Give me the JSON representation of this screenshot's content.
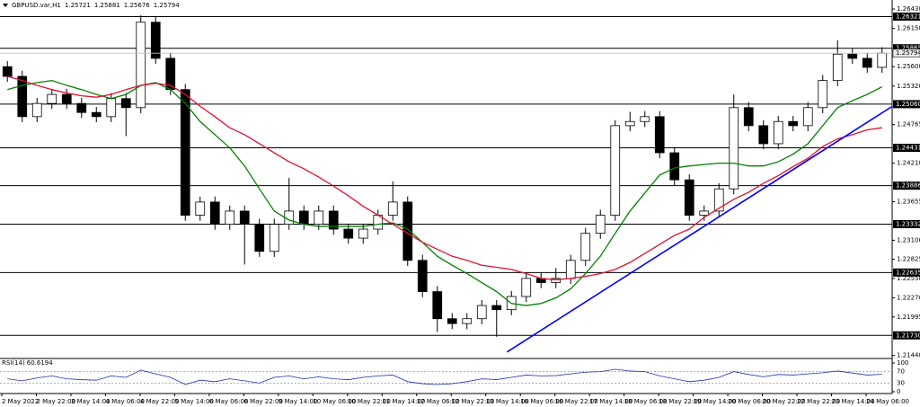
{
  "chart_data": {
    "type": "candlestick",
    "symbol": "GBPUSD.var,H1",
    "quote": [
      1.25721,
      1.25881,
      1.25676,
      1.25794
    ],
    "up_color": "#ffffff",
    "down_color": "#000000",
    "ylim": [
      1.2141,
      1.2656
    ],
    "yticks": [
      {
        "value": 1.2643,
        "label": "1.26430"
      },
      {
        "value": 1.2615,
        "label": "1.26150"
      },
      {
        "value": 1.256,
        "label": "1.25600"
      },
      {
        "value": 1.2532,
        "label": "1.25320"
      },
      1.24765,
      {
        "value": 1.2421,
        "label": "1.24210"
      },
      1.23655,
      {
        "value": 1.231,
        "label": "1.23100"
      },
      1.22825,
      {
        "value": 1.2255,
        "label": "1.22550"
      },
      {
        "value": 1.2227,
        "label": "1.22270"
      },
      1.21995,
      {
        "value": 1.2144,
        "label": "1.21440"
      }
    ],
    "candles": [
      [
        1.256,
        1.2568,
        1.2538,
        1.2546
      ],
      [
        1.2546,
        1.2554,
        1.248,
        1.2488
      ],
      [
        1.2488,
        1.2515,
        1.248,
        1.2507
      ],
      [
        1.2507,
        1.2528,
        1.2499,
        1.252
      ],
      [
        1.252,
        1.2528,
        1.2499,
        1.2507
      ],
      [
        1.2507,
        1.2515,
        1.2486,
        1.2494
      ],
      [
        1.2494,
        1.2502,
        1.248,
        1.2488
      ],
      [
        1.2488,
        1.2522,
        1.248,
        1.2514
      ],
      [
        1.2514,
        1.2522,
        1.246,
        1.2501
      ],
      [
        1.2501,
        1.2634,
        1.2493,
        1.2624
      ],
      [
        1.2624,
        1.2632,
        1.2564,
        1.2572
      ],
      [
        1.2572,
        1.258,
        1.2519,
        1.2527
      ],
      [
        1.2527,
        1.2535,
        1.2338,
        1.2346
      ],
      [
        1.2346,
        1.2373,
        1.2338,
        1.2365
      ],
      [
        1.2365,
        1.2373,
        1.2325,
        1.2333
      ],
      [
        1.2333,
        1.236,
        1.2325,
        1.2352
      ],
      [
        1.2352,
        1.236,
        1.2275,
        1.2333
      ],
      [
        1.2333,
        1.2341,
        1.2286,
        1.2294
      ],
      [
        1.2294,
        1.2341,
        1.2286,
        1.2333
      ],
      [
        1.2333,
        1.24,
        1.2325,
        1.2352
      ],
      [
        1.2352,
        1.236,
        1.2325,
        1.2333
      ],
      [
        1.2333,
        1.236,
        1.2325,
        1.2352
      ],
      [
        1.2352,
        1.236,
        1.2318,
        1.2326
      ],
      [
        1.2326,
        1.2334,
        1.2305,
        1.2313
      ],
      [
        1.2313,
        1.2334,
        1.2305,
        1.2326
      ],
      [
        1.2326,
        1.2354,
        1.2318,
        1.2346
      ],
      [
        1.2346,
        1.2395,
        1.2338,
        1.2365
      ],
      [
        1.2365,
        1.2373,
        1.2273,
        1.2281
      ],
      [
        1.2281,
        1.2289,
        1.2228,
        1.2236
      ],
      [
        1.2236,
        1.2244,
        1.2178,
        1.2197
      ],
      [
        1.2197,
        1.2205,
        1.2182,
        1.219
      ],
      [
        1.219,
        1.2205,
        1.2182,
        1.2197
      ],
      [
        1.2197,
        1.2224,
        1.2189,
        1.2216
      ],
      [
        1.2216,
        1.2224,
        1.2171,
        1.221
      ],
      [
        1.221,
        1.2237,
        1.2202,
        1.2229
      ],
      [
        1.2229,
        1.2263,
        1.2221,
        1.2255
      ],
      [
        1.2255,
        1.2263,
        1.2241,
        1.2249
      ],
      [
        1.2249,
        1.227,
        1.2241,
        1.2255
      ],
      [
        1.2255,
        1.2289,
        1.2247,
        1.2281
      ],
      [
        1.2281,
        1.2328,
        1.2273,
        1.232
      ],
      [
        1.232,
        1.2354,
        1.2312,
        1.2346
      ],
      [
        1.2346,
        1.2483,
        1.2338,
        1.2475
      ],
      [
        1.2475,
        1.2495,
        1.2467,
        1.2481
      ],
      [
        1.2481,
        1.2496,
        1.2473,
        1.2488
      ],
      [
        1.2488,
        1.2496,
        1.2428,
        1.2436
      ],
      [
        1.2436,
        1.2444,
        1.2389,
        1.2397
      ],
      [
        1.2397,
        1.2405,
        1.2338,
        1.2346
      ],
      [
        1.2346,
        1.236,
        1.2338,
        1.2352
      ],
      [
        1.2352,
        1.2392,
        1.2344,
        1.2384
      ],
      [
        1.2384,
        1.252,
        1.2376,
        1.2501
      ],
      [
        1.2501,
        1.2509,
        1.2467,
        1.2475
      ],
      [
        1.2475,
        1.2483,
        1.2441,
        1.2449
      ],
      [
        1.2449,
        1.2489,
        1.2441,
        1.2481
      ],
      [
        1.2481,
        1.2489,
        1.2467,
        1.2475
      ],
      [
        1.2475,
        1.2509,
        1.2467,
        1.2501
      ],
      [
        1.2501,
        1.2548,
        1.2493,
        1.254
      ],
      [
        1.254,
        1.2598,
        1.2532,
        1.2578
      ],
      [
        1.2578,
        1.2586,
        1.2564,
        1.2572
      ],
      [
        1.2572,
        1.258,
        1.2551,
        1.2559
      ],
      [
        1.2559,
        1.2588,
        1.2551,
        1.25794
      ]
    ],
    "series": [
      {
        "color": "#008000",
        "values": [
          1.2527,
          1.2533,
          1.2537,
          1.254,
          1.2533,
          1.2527,
          1.252,
          1.2514,
          1.252,
          1.2533,
          1.2537,
          1.2527,
          1.2507,
          1.2481,
          1.2462,
          1.2443,
          1.2417,
          1.2384,
          1.2352,
          1.2339,
          1.2333,
          1.233,
          1.233,
          1.233,
          1.233,
          1.2333,
          1.2335,
          1.2326,
          1.2307,
          1.2287,
          1.2274,
          1.2262,
          1.2249,
          1.2236,
          1.2219,
          1.2216,
          1.2219,
          1.2227,
          1.224,
          1.2262,
          1.2287,
          1.232,
          1.2352,
          1.2378,
          1.2404,
          1.2414,
          1.2417,
          1.2419,
          1.2421,
          1.2421,
          1.2417,
          1.2417,
          1.2423,
          1.2434,
          1.2449,
          1.2475,
          1.2501,
          1.2511,
          1.252,
          1.2531
        ]
      },
      {
        "color": "#e0102f",
        "values": [
          1.2546,
          1.254,
          1.2533,
          1.2527,
          1.2522,
          1.2518,
          1.2516,
          1.252,
          1.2527,
          1.2533,
          1.2536,
          1.2533,
          1.252,
          1.2503,
          1.2488,
          1.2472,
          1.2462,
          1.2449,
          1.2436,
          1.2423,
          1.2413,
          1.2401,
          1.2388,
          1.2374,
          1.2359,
          1.2346,
          1.2333,
          1.232,
          1.2307,
          1.2297,
          1.2287,
          1.2281,
          1.2274,
          1.2271,
          1.2268,
          1.2262,
          1.2255,
          1.2253,
          1.2255,
          1.2258,
          1.2262,
          1.2268,
          1.2278,
          1.2291,
          1.2304,
          1.2317,
          1.2326,
          1.2343,
          1.2356,
          1.2369,
          1.2379,
          1.2392,
          1.2403,
          1.2416,
          1.2428,
          1.2445,
          1.2456,
          1.2462,
          1.2469,
          1.2472
        ]
      }
    ],
    "levels": [
      1.26321,
      1.25865,
      {
        "value": 1.2506,
        "label": "1.25060"
      },
      1.24431,
      1.23886,
      1.23332,
      1.22635,
      {
        "value": 1.2173,
        "label": "1.21730"
      }
    ],
    "current_price": 1.25794,
    "trendline": {
      "color": "#0000ff",
      "x": [
        33.7,
        59.7
      ],
      "y": [
        1.2149,
        1.2503
      ]
    },
    "xlabels": [
      "2 May 2022",
      "2 May 22:00",
      "3 May 14:00",
      "4 May 06:00",
      "4 May 22:00",
      "5 May 14:00",
      "6 May 06:00",
      "6 May 22:00",
      "9 May 14:00",
      "10 May 06:00",
      "10 May 22:00",
      "11 May 14:00",
      "12 May 06:00",
      "12 May 22:00",
      "13 May 14:00",
      "16 May 06:00",
      "16 May 22:00",
      "17 May 14:00",
      "18 May 06:00",
      "18 May 22:00",
      "19 May 14:00",
      "20 May 06:00",
      "20 May 22:00",
      "22 May 22:00",
      "23 May 14:00",
      "24 May 06:00"
    ],
    "rsi": {
      "label": "RSI(14)",
      "value": 60.6194,
      "color": "#2030b0",
      "ylim": [
        0,
        100
      ],
      "yticks": [
        100,
        70,
        30,
        0
      ],
      "values": [
        45,
        38,
        48,
        55,
        45,
        42,
        40,
        55,
        50,
        75,
        62,
        50,
        25,
        40,
        35,
        45,
        38,
        30,
        50,
        55,
        45,
        52,
        45,
        42,
        50,
        55,
        58,
        35,
        28,
        25,
        28,
        35,
        45,
        42,
        50,
        58,
        55,
        56,
        62,
        68,
        70,
        78,
        72,
        70,
        55,
        45,
        35,
        40,
        50,
        70,
        60,
        52,
        60,
        58,
        62,
        66,
        72,
        65,
        58,
        60.6194
      ]
    }
  }
}
